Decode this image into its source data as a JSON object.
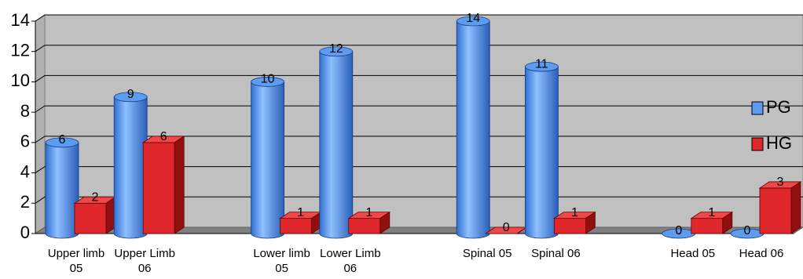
{
  "chart_data": {
    "type": "bar3d",
    "categories": [
      "Upper limb 05",
      "Upper Limb 06",
      null,
      "Lower limb 05",
      "Lower Limb 06",
      null,
      "Spinal 05",
      "Spinal 06",
      null,
      "Head 05",
      "Head 06"
    ],
    "series": [
      {
        "name": "PG",
        "color": "#5b9cf0",
        "values": [
          6,
          9,
          null,
          10,
          12,
          null,
          14,
          11,
          null,
          0,
          0
        ]
      },
      {
        "name": "HG",
        "color": "#e0282c",
        "values": [
          2,
          6,
          null,
          1,
          1,
          null,
          0,
          1,
          null,
          1,
          3
        ]
      }
    ],
    "ylim": [
      0,
      14
    ],
    "yticks": [
      0,
      2,
      4,
      6,
      8,
      10,
      12,
      14
    ],
    "grid": true,
    "legend": "right"
  }
}
